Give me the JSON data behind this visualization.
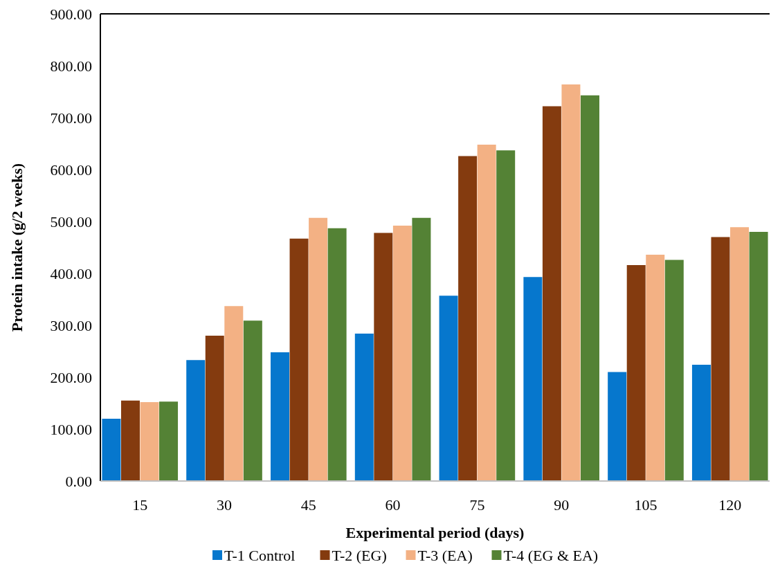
{
  "chart_data": {
    "type": "bar",
    "xlabel": "Experimental period (days)",
    "ylabel": "Protein intake (g/2 weeks)",
    "categories": [
      "15",
      "30",
      "45",
      "60",
      "75",
      "90",
      "105",
      "120"
    ],
    "series": [
      {
        "name": "T-1 Control",
        "color": "#0677cd",
        "values": [
          120,
          233,
          248,
          284,
          357,
          393,
          210,
          224
        ]
      },
      {
        "name": "T-2 (EG)",
        "color": "#843b0f",
        "values": [
          155,
          280,
          467,
          478,
          626,
          722,
          416,
          470
        ]
      },
      {
        "name": "T-3 (EA)",
        "color": "#f3b184",
        "values": [
          152,
          337,
          507,
          492,
          648,
          764,
          436,
          489
        ]
      },
      {
        "name": "T-4 (EG & EA)",
        "color": "#548235",
        "values": [
          153,
          309,
          487,
          507,
          637,
          743,
          426,
          480
        ]
      }
    ],
    "ylim": [
      0,
      900
    ],
    "yticks": [
      {
        "value": 0,
        "label": "0.00"
      },
      {
        "value": 100,
        "label": "100.00"
      },
      {
        "value": 200,
        "label": "200.00"
      },
      {
        "value": 300,
        "label": "300.00"
      },
      {
        "value": 400,
        "label": "400.00"
      },
      {
        "value": 500,
        "label": "500.00"
      },
      {
        "value": 600,
        "label": "600.00"
      },
      {
        "value": 700,
        "label": "700.00"
      },
      {
        "value": 800,
        "label": "800.00"
      },
      {
        "value": 900,
        "label": "900.00"
      }
    ],
    "grid": false,
    "legend": "bottom"
  }
}
